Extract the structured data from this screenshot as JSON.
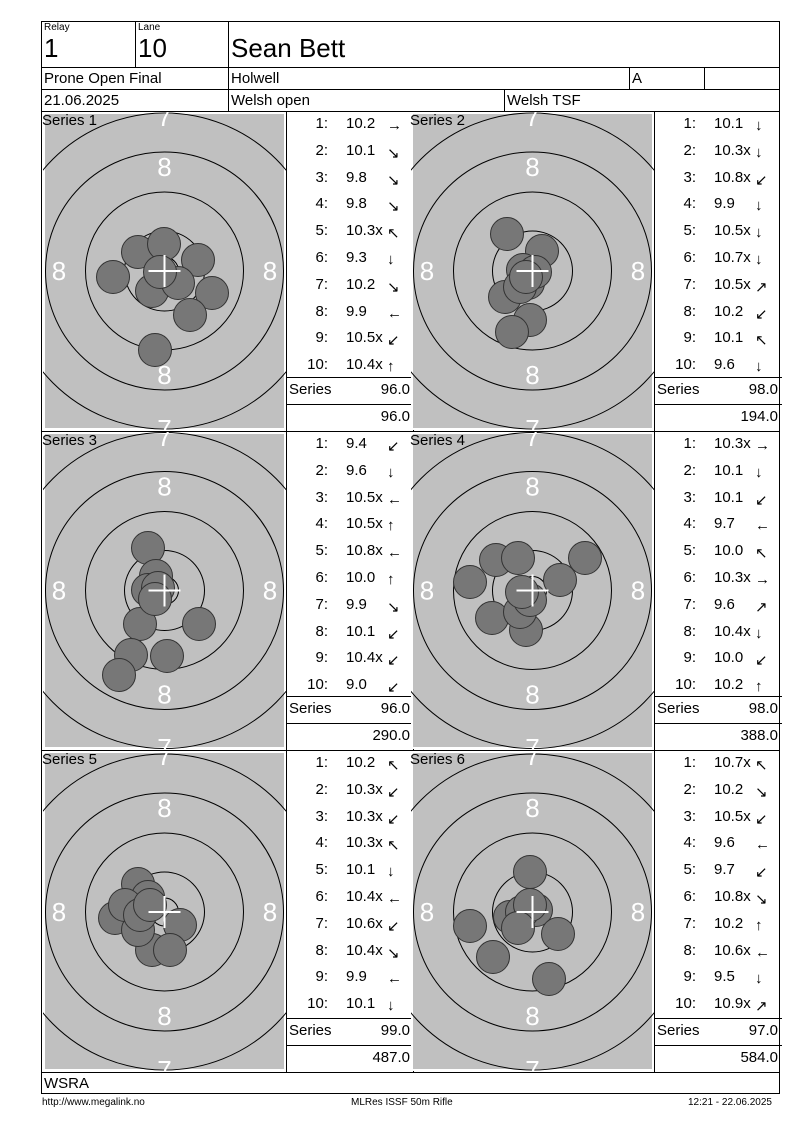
{
  "header": {
    "relay_label": "Relay",
    "relay": "1",
    "lane_label": "Lane",
    "lane": "10",
    "name": "Sean Bett",
    "event": "Prone Open Final",
    "club": "Holwell",
    "class": "A",
    "class_extra": "",
    "date": "21.06.2025",
    "competition": "Welsh open",
    "venue": "Welsh TSF"
  },
  "ring_labels": {
    "seven": "7",
    "eight": "8"
  },
  "series_label": "Series",
  "series": [
    {
      "title": "Series 1",
      "shots": [
        {
          "n": "1:",
          "v": "10.2",
          "dir": "→"
        },
        {
          "n": "2:",
          "v": "10.1",
          "dir": "↘"
        },
        {
          "n": "3:",
          "v": "9.8",
          "dir": "↘"
        },
        {
          "n": "4:",
          "v": "9.8",
          "dir": "↘"
        },
        {
          "n": "5:",
          "v": "10.3x",
          "dir": "↖"
        },
        {
          "n": "6:",
          "v": "9.3",
          "dir": "↓"
        },
        {
          "n": "7:",
          "v": "10.2",
          "dir": "↘"
        },
        {
          "n": "8:",
          "v": "9.9",
          "dir": "←"
        },
        {
          "n": "9:",
          "v": "10.5x",
          "dir": "↙"
        },
        {
          "n": "10:",
          "v": "10.4x",
          "dir": "↑"
        }
      ],
      "series_total": "96.0",
      "running_total": "96.0"
    },
    {
      "title": "Series 2",
      "shots": [
        {
          "n": "1:",
          "v": "10.1",
          "dir": "↓"
        },
        {
          "n": "2:",
          "v": "10.3x",
          "dir": "↓"
        },
        {
          "n": "3:",
          "v": "10.8x",
          "dir": "↙"
        },
        {
          "n": "4:",
          "v": "9.9",
          "dir": "↓"
        },
        {
          "n": "5:",
          "v": "10.5x",
          "dir": "↓"
        },
        {
          "n": "6:",
          "v": "10.7x",
          "dir": "↓"
        },
        {
          "n": "7:",
          "v": "10.5x",
          "dir": "↗"
        },
        {
          "n": "8:",
          "v": "10.2",
          "dir": "↙"
        },
        {
          "n": "9:",
          "v": "10.1",
          "dir": "↖"
        },
        {
          "n": "10:",
          "v": "9.6",
          "dir": "↓"
        }
      ],
      "series_total": "98.0",
      "running_total": "194.0"
    },
    {
      "title": "Series 3",
      "shots": [
        {
          "n": "1:",
          "v": "9.4",
          "dir": "↙"
        },
        {
          "n": "2:",
          "v": "9.6",
          "dir": "↓"
        },
        {
          "n": "3:",
          "v": "10.5x",
          "dir": "←"
        },
        {
          "n": "4:",
          "v": "10.5x",
          "dir": "↑"
        },
        {
          "n": "5:",
          "v": "10.8x",
          "dir": "←"
        },
        {
          "n": "6:",
          "v": "10.0",
          "dir": "↑"
        },
        {
          "n": "7:",
          "v": "9.9",
          "dir": "↘"
        },
        {
          "n": "8:",
          "v": "10.1",
          "dir": "↙"
        },
        {
          "n": "9:",
          "v": "10.4x",
          "dir": "↙"
        },
        {
          "n": "10:",
          "v": "9.0",
          "dir": "↙"
        }
      ],
      "series_total": "96.0",
      "running_total": "290.0"
    },
    {
      "title": "Series 4",
      "shots": [
        {
          "n": "1:",
          "v": "10.3x",
          "dir": "→"
        },
        {
          "n": "2:",
          "v": "10.1",
          "dir": "↓"
        },
        {
          "n": "3:",
          "v": "10.1",
          "dir": "↙"
        },
        {
          "n": "4:",
          "v": "9.7",
          "dir": "←"
        },
        {
          "n": "5:",
          "v": "10.0",
          "dir": "↖"
        },
        {
          "n": "6:",
          "v": "10.3x",
          "dir": "→"
        },
        {
          "n": "7:",
          "v": "9.6",
          "dir": "↗"
        },
        {
          "n": "8:",
          "v": "10.4x",
          "dir": "↓"
        },
        {
          "n": "9:",
          "v": "10.0",
          "dir": "↙"
        },
        {
          "n": "10:",
          "v": "10.2",
          "dir": "↑"
        }
      ],
      "series_total": "98.0",
      "running_total": "388.0"
    },
    {
      "title": "Series 5",
      "shots": [
        {
          "n": "1:",
          "v": "10.2",
          "dir": "↖"
        },
        {
          "n": "2:",
          "v": "10.3x",
          "dir": "↙"
        },
        {
          "n": "3:",
          "v": "10.3x",
          "dir": "↙"
        },
        {
          "n": "4:",
          "v": "10.3x",
          "dir": "↖"
        },
        {
          "n": "5:",
          "v": "10.1",
          "dir": "↓"
        },
        {
          "n": "6:",
          "v": "10.4x",
          "dir": "←"
        },
        {
          "n": "7:",
          "v": "10.6x",
          "dir": "↙"
        },
        {
          "n": "8:",
          "v": "10.4x",
          "dir": "↘"
        },
        {
          "n": "9:",
          "v": "9.9",
          "dir": "←"
        },
        {
          "n": "10:",
          "v": "10.1",
          "dir": "↓"
        }
      ],
      "series_total": "99.0",
      "running_total": "487.0"
    },
    {
      "title": "Series 6",
      "shots": [
        {
          "n": "1:",
          "v": "10.7x",
          "dir": "↖"
        },
        {
          "n": "2:",
          "v": "10.2",
          "dir": "↘"
        },
        {
          "n": "3:",
          "v": "10.5x",
          "dir": "↙"
        },
        {
          "n": "4:",
          "v": "9.6",
          "dir": "←"
        },
        {
          "n": "5:",
          "v": "9.7",
          "dir": "↙"
        },
        {
          "n": "6:",
          "v": "10.8x",
          "dir": "↘"
        },
        {
          "n": "7:",
          "v": "10.2",
          "dir": "↑"
        },
        {
          "n": "8:",
          "v": "10.6x",
          "dir": "←"
        },
        {
          "n": "9:",
          "v": "9.5",
          "dir": "↓"
        },
        {
          "n": "10:",
          "v": "10.9x",
          "dir": "↗"
        }
      ],
      "series_total": "97.0",
      "running_total": "584.0"
    }
  ],
  "org": "WSRA",
  "footer": {
    "url": "http://www.megalink.no",
    "system": "MLRes ISSF 50m Rifle",
    "printed": "12:21 - 22.06.2025"
  },
  "colors": {
    "target_bg": "#c0c0c0",
    "shot_fill": "#777777",
    "line": "#000000"
  }
}
